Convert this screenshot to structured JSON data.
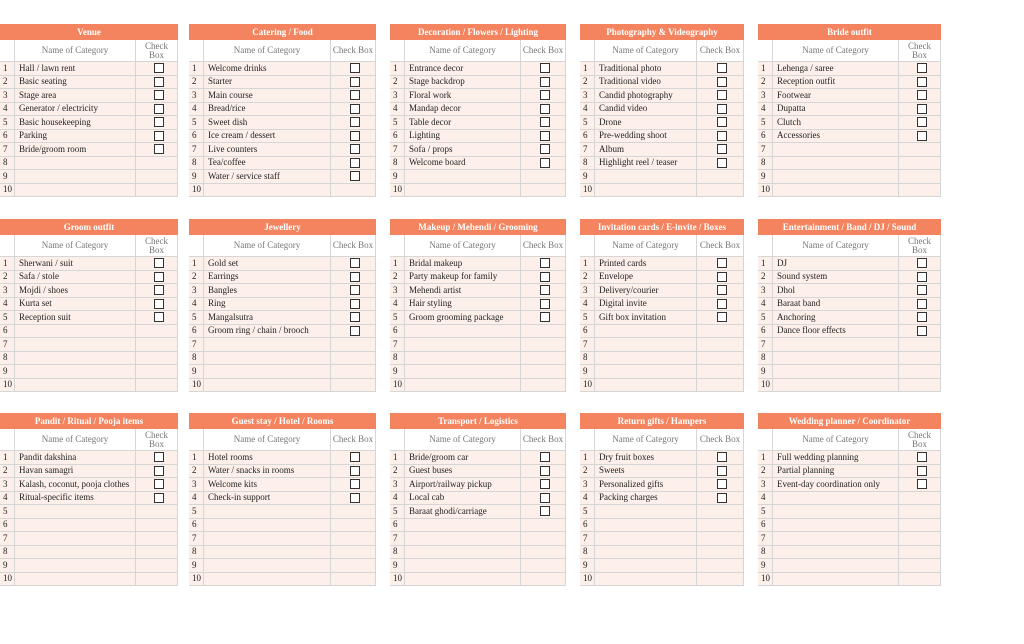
{
  "tables": [
    {
      "title": "Venue",
      "columns": [
        "Name of Category",
        "Check Box"
      ],
      "numbers": [
        1,
        2,
        3,
        4,
        5,
        6,
        7,
        8,
        9,
        10
      ],
      "items": [
        "Hall / lawn rent",
        "Basic seating",
        "Stage area",
        "Generator / electricity",
        "Basic housekeeping",
        "Parking",
        "Bride/groom room"
      ]
    },
    {
      "title": "Catering / Food",
      "columns": [
        "Name of Category",
        "Check Box"
      ],
      "numbers": [
        1,
        2,
        3,
        4,
        5,
        6,
        7,
        8,
        9,
        10
      ],
      "items": [
        "Welcome drinks",
        "Starter",
        "Main course",
        "Bread/rice",
        "Sweet dish",
        "Ice cream / dessert",
        "Live counters",
        "Tea/coffee",
        "Water / service staff"
      ]
    },
    {
      "title": "Decoration / Flowers / Lighting",
      "columns": [
        "Name of Category",
        "Check Box"
      ],
      "numbers": [
        1,
        2,
        3,
        4,
        5,
        6,
        7,
        8,
        9,
        10
      ],
      "items": [
        "Entrance decor",
        "Stage backdrop",
        "Floral work",
        "Mandap decor",
        "Table decor",
        "Lighting",
        "Sofa / props",
        "Welcome board"
      ]
    },
    {
      "title": "Photography & Videography",
      "columns": [
        "Name of Category",
        "Check Box"
      ],
      "numbers": [
        1,
        2,
        3,
        4,
        5,
        6,
        7,
        8,
        9,
        10
      ],
      "items": [
        "Traditional photo",
        "Traditional video",
        "Candid photography",
        "Candid video",
        "Drone",
        "Pre-wedding shoot",
        "Album",
        "Highlight reel / teaser"
      ]
    },
    {
      "title": "Bride outfit",
      "columns": [
        "Name of Category",
        "Check Box"
      ],
      "numbers": [
        1,
        2,
        3,
        4,
        5,
        6,
        7,
        8,
        9,
        10
      ],
      "items": [
        "Lehenga / saree",
        "Reception outfit",
        "Footwear",
        "Dupatta",
        "Clutch",
        "Accessories"
      ]
    },
    {
      "title": "Groom outfit",
      "columns": [
        "Name of Category",
        "Check Box"
      ],
      "numbers": [
        1,
        2,
        3,
        4,
        5,
        6,
        7,
        8,
        9,
        10
      ],
      "items": [
        "Sherwani / suit",
        "Safa / stole",
        "Mojdi / shoes",
        "Kurta set",
        "Reception suit"
      ]
    },
    {
      "title": "Jewellery",
      "columns": [
        "Name of Category",
        "Check Box"
      ],
      "numbers": [
        1,
        2,
        3,
        4,
        5,
        6,
        7,
        8,
        9,
        10
      ],
      "items": [
        "Gold set",
        "Earrings",
        "Bangles",
        "Ring",
        "Mangalsutra",
        "Groom ring / chain / brooch"
      ]
    },
    {
      "title": "Makeup / Mehendi / Grooming",
      "columns": [
        "Name of Category",
        "Check Box"
      ],
      "numbers": [
        1,
        2,
        3,
        4,
        5,
        6,
        7,
        8,
        9,
        10
      ],
      "items": [
        "Bridal makeup",
        "Party makeup for family",
        "Mehendi artist",
        "Hair styling",
        "Groom grooming package"
      ]
    },
    {
      "title": "Invitation cards / E-invite / Boxes",
      "columns": [
        "Name of Category",
        "Check Box"
      ],
      "numbers": [
        1,
        2,
        3,
        4,
        5,
        6,
        7,
        8,
        9,
        10
      ],
      "items": [
        "Printed cards",
        "Envelope",
        "Delivery/courier",
        "Digital invite",
        "Gift box invitation"
      ]
    },
    {
      "title": "Entertainment / Band / DJ / Sound",
      "columns": [
        "Name of Category",
        "Check Box"
      ],
      "numbers": [
        1,
        2,
        3,
        4,
        5,
        6,
        7,
        8,
        9,
        10
      ],
      "items": [
        "DJ",
        "Sound system",
        "Dhol",
        "Baraat band",
        "Anchoring",
        "Dance floor effects"
      ]
    },
    {
      "title": "Pandit / Ritual / Pooja items",
      "columns": [
        "Name of Category",
        "Check Box"
      ],
      "numbers": [
        1,
        2,
        3,
        4,
        5,
        6,
        7,
        8,
        9,
        10
      ],
      "items": [
        "Pandit dakshina",
        "Havan samagri",
        "Kalash, coconut, pooja clothes",
        "Ritual-specific items"
      ]
    },
    {
      "title": "Guest stay / Hotel / Rooms",
      "columns": [
        "Name of Category",
        "Check Box"
      ],
      "numbers": [
        1,
        2,
        3,
        4,
        5,
        6,
        7,
        8,
        9,
        10
      ],
      "items": [
        "Hotel rooms",
        "Water / snacks in rooms",
        "Welcome kits",
        "Check-in support"
      ]
    },
    {
      "title": "Transport / Logistics",
      "columns": [
        "Name of Category",
        "Check Box"
      ],
      "numbers": [
        1,
        2,
        3,
        4,
        5,
        6,
        7,
        8,
        9,
        10
      ],
      "items": [
        "Bride/groom car",
        "Guest buses",
        "Airport/railway pickup",
        "Local cab",
        "Baraat ghodi/carriage"
      ]
    },
    {
      "title": "Return gifts / Hampers",
      "columns": [
        "Name of Category",
        "Check Box"
      ],
      "numbers": [
        1,
        2,
        3,
        4,
        5,
        6,
        7,
        8,
        9,
        10
      ],
      "items": [
        "Dry fruit boxes",
        "Sweets",
        "Personalized gifts",
        "Packing charges"
      ]
    },
    {
      "title": "Wedding planner / Coordinator",
      "columns": [
        "Name of Category",
        "Check Box"
      ],
      "numbers": [
        1,
        2,
        3,
        4,
        5,
        6,
        7,
        8,
        9,
        10
      ],
      "items": [
        "Full wedding planning",
        "Partial planning",
        "Event-day coordination only"
      ]
    }
  ]
}
